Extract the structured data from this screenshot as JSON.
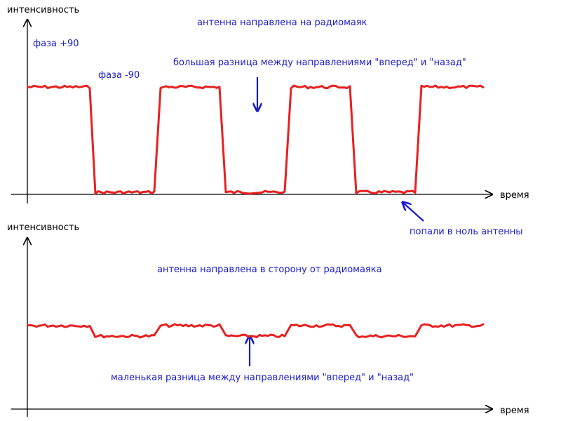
{
  "colors": {
    "signal": "#e82020",
    "annotation": "#1a1acc",
    "axis": "#000000",
    "background": "#ffffff"
  },
  "top_panel": {
    "y_axis_label": "интенсивность",
    "x_axis_label": "время",
    "title": "антенна направлена на радиомаяк",
    "phase_plus_label": "фаза +90",
    "phase_minus_label": "фаза -90",
    "difference_note": "большая разница между направлениями \"вперед\" и \"назад\"",
    "null_note": "попали в ноль антенны",
    "arrow_icons": [
      "arrow-down-icon",
      "arrow-up-left-icon"
    ]
  },
  "bottom_panel": {
    "y_axis_label": "интенсивность",
    "x_axis_label": "время",
    "title": "антенна направлена в сторону от радиомаяка",
    "difference_note": "маленькая разница между направлениями \"вперед\" и \"назад\"",
    "arrow_icons": [
      "arrow-up-icon"
    ]
  },
  "signal_pattern": {
    "top": [
      "high",
      "low",
      "high",
      "low",
      "high",
      "low",
      "high"
    ],
    "bottom": [
      "high",
      "slightly-lower",
      "high",
      "slightly-lower",
      "high",
      "slightly-lower",
      "high"
    ]
  }
}
